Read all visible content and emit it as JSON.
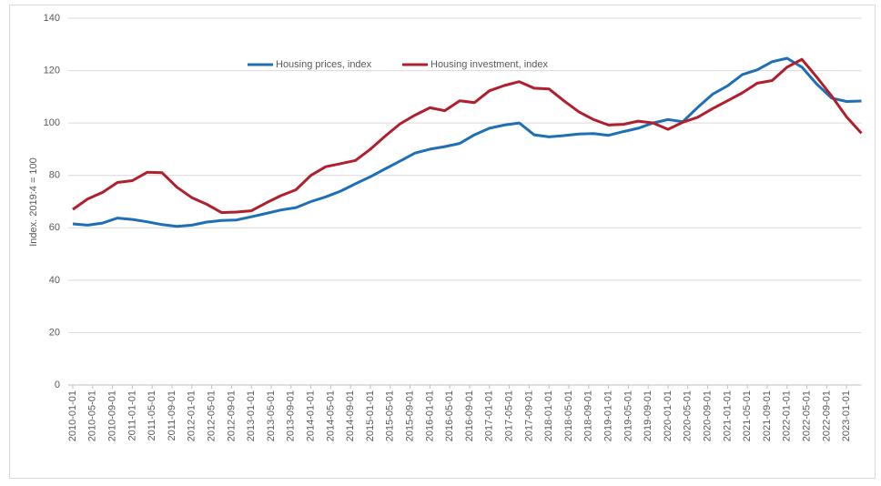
{
  "chart_data": {
    "type": "line",
    "y_label": "Index. 2019:4 = 100",
    "x": [
      "2010-01-01",
      "2010-04-01",
      "2010-07-01",
      "2010-10-01",
      "2011-01-01",
      "2011-04-01",
      "2011-07-01",
      "2011-10-01",
      "2012-01-01",
      "2012-04-01",
      "2012-07-01",
      "2012-10-01",
      "2013-01-01",
      "2013-04-01",
      "2013-07-01",
      "2013-10-01",
      "2014-01-01",
      "2014-04-01",
      "2014-07-01",
      "2014-10-01",
      "2015-01-01",
      "2015-04-01",
      "2015-07-01",
      "2015-10-01",
      "2016-01-01",
      "2016-04-01",
      "2016-07-01",
      "2016-10-01",
      "2017-01-01",
      "2017-04-01",
      "2017-07-01",
      "2017-10-01",
      "2018-01-01",
      "2018-04-01",
      "2018-07-01",
      "2018-10-01",
      "2019-01-01",
      "2019-04-01",
      "2019-07-01",
      "2019-10-01",
      "2020-01-01",
      "2020-04-01",
      "2020-07-01",
      "2020-10-01",
      "2021-01-01",
      "2021-04-01",
      "2021-07-01",
      "2021-10-01",
      "2022-01-01",
      "2022-04-01",
      "2022-07-01",
      "2022-10-01",
      "2023-01-01",
      "2023-04-01"
    ],
    "series": [
      {
        "name": "Housing prices, index",
        "color": "#1f6fb4",
        "values": [
          61.5,
          61,
          61.8,
          63.7,
          63.2,
          62.3,
          61.2,
          60.5,
          61,
          62.2,
          62.8,
          63,
          64.2,
          65.5,
          66.8,
          67.7,
          70,
          71.8,
          74,
          76.8,
          79.5,
          82.5,
          85.5,
          88.5,
          90,
          91,
          92.2,
          95.5,
          98,
          99.2,
          100,
          95.5,
          94.7,
          95.2,
          95.8,
          96,
          95.3,
          96.7,
          98,
          100,
          101.3,
          100.5,
          106,
          111,
          114.2,
          118.5,
          120.3,
          123.4,
          124.7,
          121.3,
          114.8,
          109.5,
          108.2,
          108.4
        ]
      },
      {
        "name": "Housing investment, index",
        "color": "#b01f2e",
        "values": [
          67,
          71,
          73.5,
          77.3,
          78,
          81.2,
          81,
          75.5,
          71.5,
          69,
          65.8,
          66,
          66.5,
          69.5,
          72.3,
          74.5,
          80,
          83.3,
          84.5,
          85.7,
          90,
          95,
          99.7,
          103,
          105.8,
          104.7,
          108.5,
          107.8,
          112.3,
          114.3,
          115.8,
          113.3,
          113,
          108.5,
          104.3,
          101.3,
          99.2,
          99.5,
          100.7,
          100,
          97.6,
          100.3,
          102.2,
          105.5,
          108.5,
          111.5,
          115.2,
          116.2,
          121.3,
          124.3,
          117.5,
          110.3,
          102.3,
          96.1
        ]
      }
    ],
    "xlim": [
      "2010-01-01",
      "2023-04-01"
    ],
    "xticks": [
      "2010-01-01",
      "2010-05-01",
      "2010-09-01",
      "2011-01-01",
      "2011-05-01",
      "2011-09-01",
      "2012-01-01",
      "2012-05-01",
      "2012-09-01",
      "2013-01-01",
      "2013-05-01",
      "2013-09-01",
      "2014-01-01",
      "2014-05-01",
      "2014-09-01",
      "2015-01-01",
      "2015-05-01",
      "2015-09-01",
      "2016-01-01",
      "2016-05-01",
      "2016-09-01",
      "2017-01-01",
      "2017-05-01",
      "2017-09-01",
      "2018-01-01",
      "2018-05-01",
      "2018-09-01",
      "2019-01-01",
      "2019-05-01",
      "2019-09-01",
      "2020-01-01",
      "2020-05-01",
      "2020-09-01",
      "2021-01-01",
      "2021-05-01",
      "2021-09-01",
      "2022-01-01",
      "2022-05-01",
      "2022-09-01",
      "2023-01-01"
    ],
    "ylim": [
      0,
      140
    ],
    "yticks": [
      0,
      20,
      40,
      60,
      80,
      100,
      120,
      140
    ],
    "grid": true,
    "legend": "top"
  }
}
